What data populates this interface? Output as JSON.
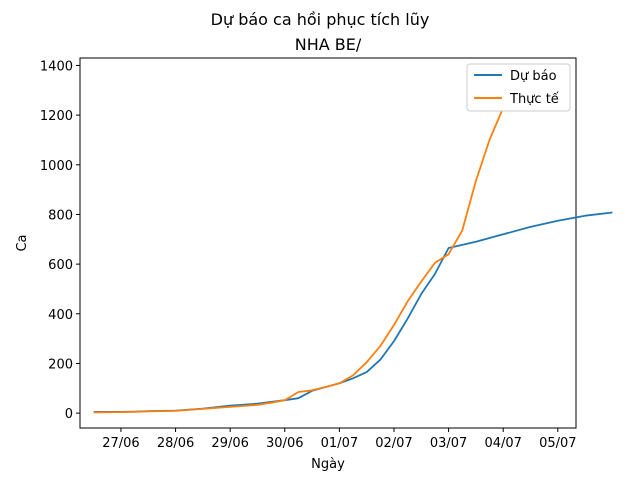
{
  "chart_data": {
    "type": "line",
    "title": "Dự báo ca hồi phục tích lũy",
    "subtitle": "NHA BE/",
    "xlabel": "Ngày",
    "ylabel": "Ca",
    "x_axis": {
      "kind": "date",
      "ticks": [
        {
          "date": "2021-06-27",
          "label": "27/06"
        },
        {
          "date": "2021-06-28",
          "label": "28/06"
        },
        {
          "date": "2021-06-29",
          "label": "29/06"
        },
        {
          "date": "2021-06-30",
          "label": "30/06"
        },
        {
          "date": "2021-07-01",
          "label": "01/07"
        },
        {
          "date": "2021-07-02",
          "label": "02/07"
        },
        {
          "date": "2021-07-03",
          "label": "03/07"
        },
        {
          "date": "2021-07-04",
          "label": "04/07"
        },
        {
          "date": "2021-07-05",
          "label": "05/07"
        }
      ],
      "xlim": [
        "2021-06-26T06:00",
        "2021-07-05T08:00"
      ]
    },
    "y_axis": {
      "ticks": [
        0,
        200,
        400,
        600,
        800,
        1000,
        1200,
        1400
      ],
      "ylim": [
        -60,
        1430
      ]
    },
    "legend": {
      "position": "top-right"
    },
    "grid": false,
    "series": [
      {
        "name": "Dự báo",
        "color": "#1f77b4",
        "points": [
          [
            "2021-06-26T12:00",
            5
          ],
          [
            "2021-06-27T00:00",
            5
          ],
          [
            "2021-06-27T06:00",
            6
          ],
          [
            "2021-06-27T12:00",
            8
          ],
          [
            "2021-06-28T00:00",
            10
          ],
          [
            "2021-06-28T12:00",
            18
          ],
          [
            "2021-06-29T00:00",
            30
          ],
          [
            "2021-06-29T12:00",
            38
          ],
          [
            "2021-06-29T18:00",
            45
          ],
          [
            "2021-06-30T00:00",
            52
          ],
          [
            "2021-06-30T06:00",
            60
          ],
          [
            "2021-06-30T12:00",
            90
          ],
          [
            "2021-06-30T18:00",
            105
          ],
          [
            "2021-07-01T00:00",
            120
          ],
          [
            "2021-07-01T06:00",
            140
          ],
          [
            "2021-07-01T12:00",
            165
          ],
          [
            "2021-07-01T18:00",
            215
          ],
          [
            "2021-07-02T00:00",
            290
          ],
          [
            "2021-07-02T06:00",
            380
          ],
          [
            "2021-07-02T12:00",
            480
          ],
          [
            "2021-07-02T18:00",
            560
          ],
          [
            "2021-07-03T00:00",
            665
          ],
          [
            "2021-07-03T12:00",
            690
          ],
          [
            "2021-07-04T00:00",
            720
          ],
          [
            "2021-07-04T12:00",
            750
          ],
          [
            "2021-07-05T00:00",
            775
          ],
          [
            "2021-07-05T12:00",
            795
          ],
          [
            "2021-07-06T00:00",
            808
          ]
        ]
      },
      {
        "name": "Thực tế",
        "color": "#ff7f0e",
        "points": [
          [
            "2021-06-26T12:00",
            3
          ],
          [
            "2021-06-27T00:00",
            4
          ],
          [
            "2021-06-27T06:00",
            5
          ],
          [
            "2021-06-27T12:00",
            7
          ],
          [
            "2021-06-28T00:00",
            9
          ],
          [
            "2021-06-28T12:00",
            17
          ],
          [
            "2021-06-29T00:00",
            25
          ],
          [
            "2021-06-29T12:00",
            33
          ],
          [
            "2021-06-29T18:00",
            42
          ],
          [
            "2021-06-30T00:00",
            52
          ],
          [
            "2021-06-30T06:00",
            85
          ],
          [
            "2021-06-30T12:00",
            92
          ],
          [
            "2021-06-30T18:00",
            105
          ],
          [
            "2021-07-01T00:00",
            120
          ],
          [
            "2021-07-01T06:00",
            152
          ],
          [
            "2021-07-01T12:00",
            205
          ],
          [
            "2021-07-01T18:00",
            270
          ],
          [
            "2021-07-02T00:00",
            355
          ],
          [
            "2021-07-02T06:00",
            450
          ],
          [
            "2021-07-02T12:00",
            530
          ],
          [
            "2021-07-02T18:00",
            605
          ],
          [
            "2021-07-03T00:00",
            640
          ],
          [
            "2021-07-03T06:00",
            735
          ],
          [
            "2021-07-03T12:00",
            935
          ],
          [
            "2021-07-03T18:00",
            1100
          ],
          [
            "2021-07-04T00:00",
            1230
          ],
          [
            "2021-07-04T06:00",
            1370
          ]
        ]
      }
    ]
  }
}
